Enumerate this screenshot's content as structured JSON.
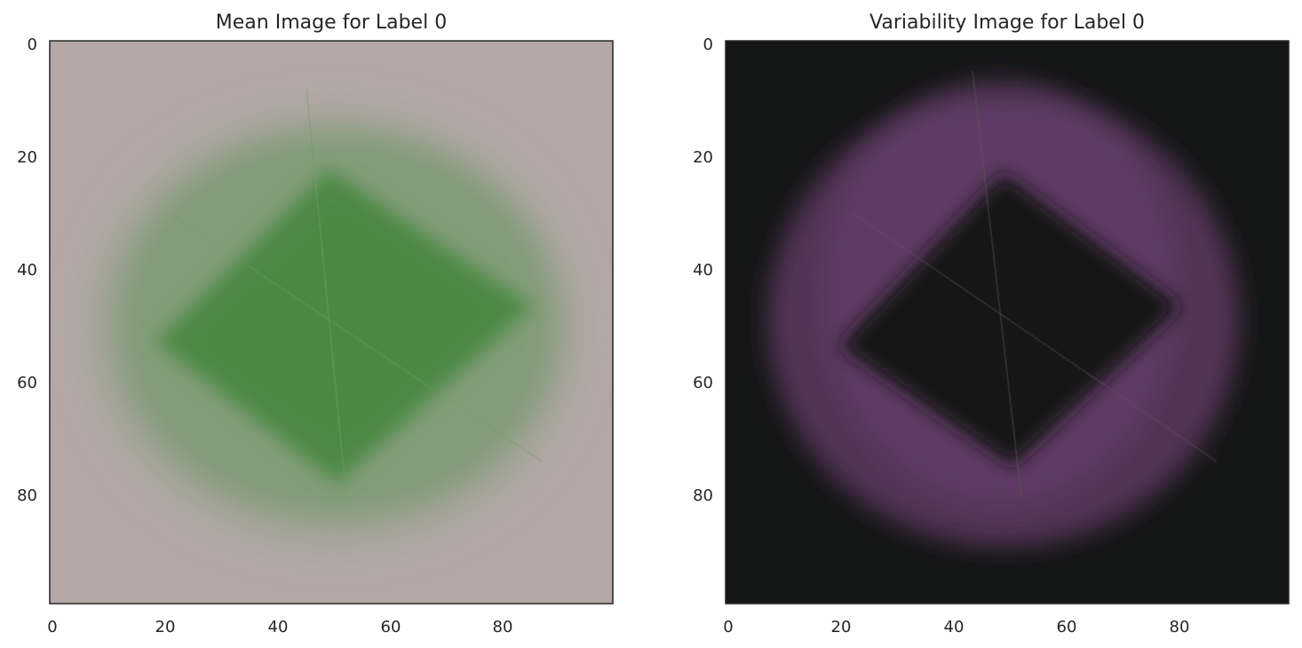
{
  "chart_data": [
    {
      "type": "image",
      "title": "Mean Image for Label 0",
      "xlim": [
        0,
        99
      ],
      "ylim": [
        99,
        0
      ],
      "x_ticks": [
        "0",
        "20",
        "40",
        "60",
        "80"
      ],
      "y_ticks": [
        "0",
        "20",
        "40",
        "60",
        "80"
      ],
      "x_tick_values": [
        0,
        20,
        40,
        60,
        80
      ],
      "y_tick_values": [
        0,
        20,
        40,
        60,
        80
      ],
      "colors": {
        "background": "#b4a8a6",
        "foreground": "#4e8a44",
        "mid": "#849a7e"
      }
    },
    {
      "type": "image",
      "title": "Variability Image for Label 0",
      "xlim": [
        0,
        99
      ],
      "ylim": [
        99,
        0
      ],
      "x_ticks": [
        "0",
        "20",
        "40",
        "60",
        "80"
      ],
      "y_ticks": [
        "0",
        "20",
        "40",
        "60",
        "80"
      ],
      "x_tick_values": [
        0,
        20,
        40,
        60,
        80
      ],
      "y_tick_values": [
        0,
        20,
        40,
        60,
        80
      ],
      "colors": {
        "background": "#151616",
        "foreground": "#5e3a62",
        "mid": "#3b3540"
      }
    }
  ]
}
